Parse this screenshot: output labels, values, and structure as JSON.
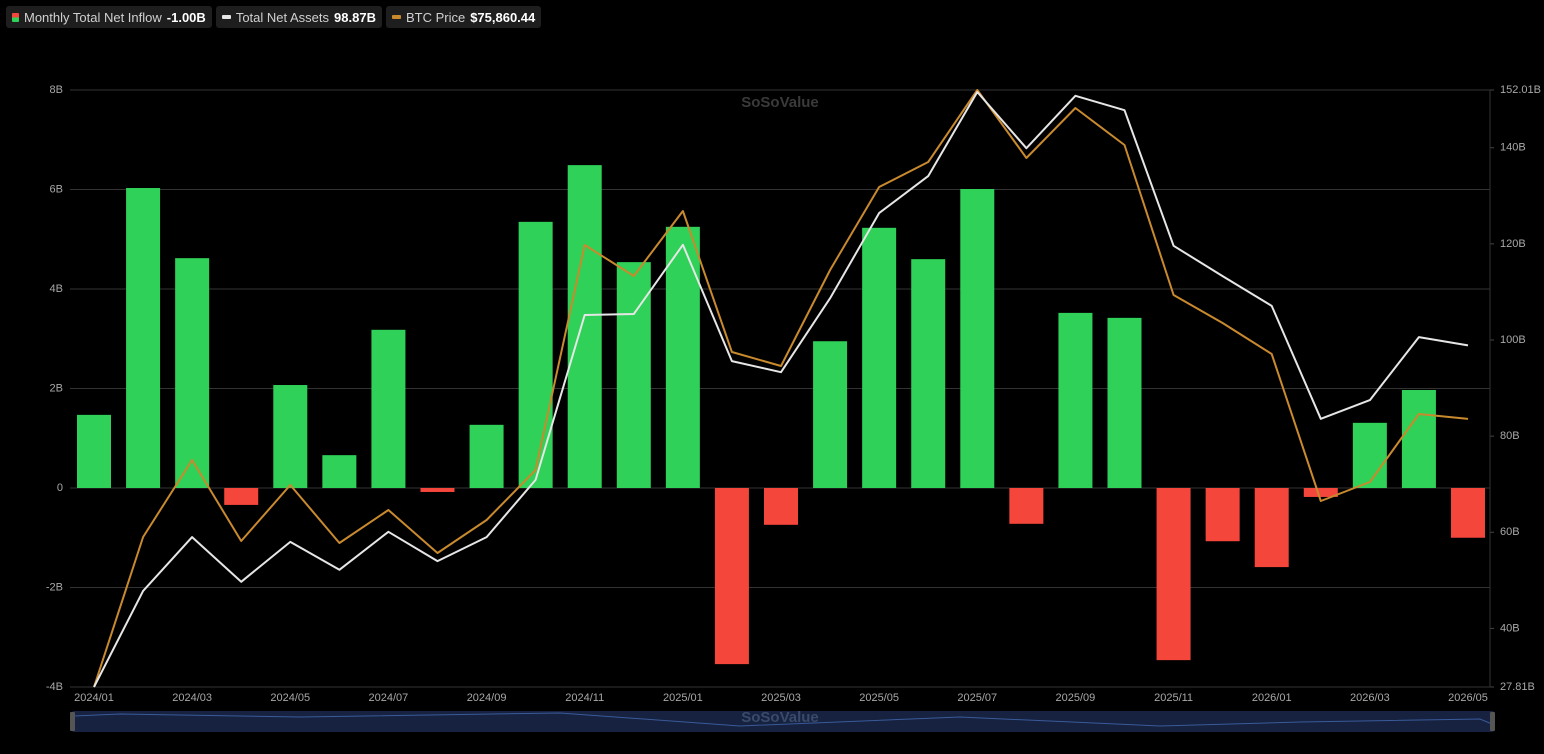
{
  "chart_data": {
    "type": "bar",
    "categories": [
      "2024/01",
      null,
      "2024/03",
      null,
      "2024/05",
      null,
      "2024/07",
      null,
      "2024/09",
      null,
      "2024/11",
      null,
      "2025/01",
      null,
      "2025/03",
      null,
      "2025/05",
      null,
      "2025/07",
      null,
      "2025/09",
      null,
      "2025/11",
      null,
      "2026/01",
      null,
      "2026/03",
      null,
      "2026/05"
    ],
    "series": [
      {
        "name": "Monthly Total Net Inflow",
        "type": "bar",
        "legend_value": "-1.00B",
        "color": "#2fd158",
        "negative_color": "#f4463b",
        "values": [
          1.47,
          6.03,
          4.62,
          -0.34,
          2.07,
          0.66,
          3.18,
          -0.08,
          1.27,
          5.35,
          6.49,
          4.54,
          5.25,
          -3.54,
          -0.74,
          2.95,
          5.23,
          4.6,
          6.01,
          -0.72,
          3.52,
          3.42,
          -3.46,
          -1.07,
          -1.59,
          -0.18,
          1.31,
          1.97,
          -1.0
        ]
      },
      {
        "name": "Total Net Assets",
        "type": "line",
        "axis": "y2",
        "legend_value": "98.87B",
        "color": "#e6e6e6",
        "values": [
          27.81,
          47.8,
          59.0,
          49.7,
          58.0,
          52.2,
          60.1,
          54.0,
          59.0,
          70.9,
          105.2,
          105.4,
          119.8,
          95.6,
          93.3,
          108.7,
          126.4,
          134.1,
          151.6,
          139.9,
          150.8,
          147.8,
          119.6,
          113.3,
          107.1,
          83.6,
          87.5,
          100.6,
          98.87
        ]
      },
      {
        "name": "BTC Price",
        "type": "line",
        "axis": "y3",
        "legend_value": "$75,860.44",
        "color": "#c98a2e",
        "values": [
          42580,
          61200,
          70760,
          60710,
          67660,
          60460,
          64560,
          59220,
          63310,
          69520,
          97450,
          93610,
          101680,
          84170,
          82430,
          94350,
          104660,
          107760,
          116700,
          108260,
          114460,
          109870,
          91250,
          87770,
          83920,
          65670,
          68030,
          76470,
          75860.44
        ]
      }
    ],
    "ylim": [
      -4,
      8
    ],
    "yticks": [
      {
        "value": -4,
        "label": "-4B"
      },
      {
        "value": -2,
        "label": "-2B"
      },
      {
        "value": 0,
        "label": "0"
      },
      {
        "value": 2,
        "label": "2B"
      },
      {
        "value": 4,
        "label": "4B"
      },
      {
        "value": 6,
        "label": "6B"
      },
      {
        "value": 8,
        "label": "8B"
      }
    ],
    "y2lim": [
      27.81,
      152.01
    ],
    "y2ticks": [
      {
        "value": 27.81,
        "label": "27.81B"
      },
      {
        "value": 40,
        "label": "40B"
      },
      {
        "value": 60,
        "label": "60B"
      },
      {
        "value": 80,
        "label": "80B"
      },
      {
        "value": 100,
        "label": "100B"
      },
      {
        "value": 120,
        "label": "120B"
      },
      {
        "value": 140,
        "label": "140B"
      },
      {
        "value": 152.01,
        "label": "152.01B"
      }
    ],
    "y3lim": [
      42580,
      116700
    ],
    "grid": true,
    "watermark": "SoSoValue"
  }
}
